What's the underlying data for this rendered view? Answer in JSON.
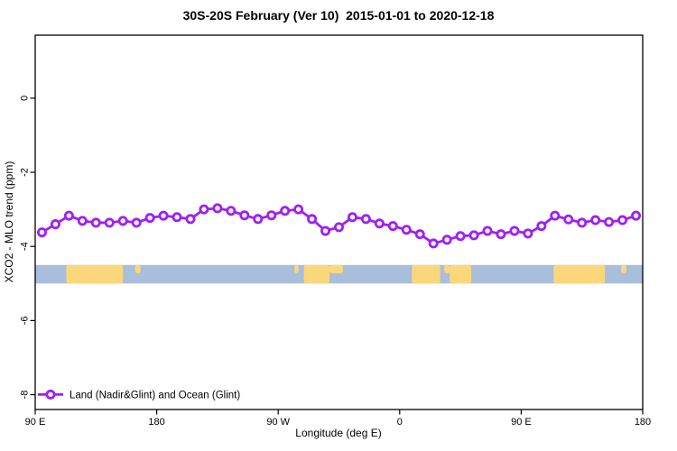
{
  "chart_data": {
    "type": "line",
    "title": "30S-20S February (Ver 10)  2015-01-01 to 2020-12-18",
    "xlabel": "Longitude (deg E)",
    "ylabel": "XCO2 - MLO trend (ppm)",
    "grid": false,
    "legend_position": "bottom-left-inside",
    "x_axis": {
      "min": 90,
      "max": 540,
      "ticks": [
        {
          "value": 90,
          "label": "90 E"
        },
        {
          "value": 180,
          "label": "180"
        },
        {
          "value": 270,
          "label": "90 W"
        },
        {
          "value": 360,
          "label": "0"
        },
        {
          "value": 450,
          "label": "90 E"
        },
        {
          "value": 540,
          "label": "180"
        }
      ]
    },
    "y_axis": {
      "min": -8.4,
      "max": 1.7,
      "ticks": [
        {
          "value": 0,
          "label": "0"
        },
        {
          "value": -2,
          "label": "-2"
        },
        {
          "value": -4,
          "label": "-4"
        },
        {
          "value": -6,
          "label": "-6"
        },
        {
          "value": -8,
          "label": "-8"
        }
      ]
    },
    "series": [
      {
        "name": "Land (Nadir&Glint) and Ocean (Glint)",
        "color": "#A020F0",
        "marker": "open-circle",
        "x": [
          95,
          105,
          115,
          125,
          135,
          145,
          155,
          165,
          175,
          185,
          195,
          205,
          215,
          225,
          235,
          245,
          255,
          265,
          275,
          285,
          295,
          305,
          315,
          325,
          335,
          345,
          355,
          365,
          375,
          385,
          395,
          405,
          415,
          425,
          435,
          445,
          455,
          465,
          475,
          485,
          495,
          505,
          515,
          525,
          535
        ],
        "y": [
          -3.62,
          -3.4,
          -3.17,
          -3.31,
          -3.36,
          -3.36,
          -3.31,
          -3.36,
          -3.23,
          -3.17,
          -3.21,
          -3.26,
          -3.0,
          -2.97,
          -3.04,
          -3.16,
          -3.26,
          -3.16,
          -3.04,
          -3.0,
          -3.26,
          -3.58,
          -3.48,
          -3.21,
          -3.26,
          -3.38,
          -3.45,
          -3.55,
          -3.67,
          -3.92,
          -3.82,
          -3.72,
          -3.7,
          -3.58,
          -3.67,
          -3.58,
          -3.65,
          -3.45,
          -3.17,
          -3.27,
          -3.36,
          -3.29,
          -3.34,
          -3.29,
          -3.17
        ]
      }
    ],
    "map_band": {
      "y_from": -4.5,
      "y_to": -5.0,
      "ocean_color": "#A8BEDB",
      "land_color": "#FBD77B",
      "land_segments": [
        {
          "from": 113,
          "to": 155,
          "part": "full"
        },
        {
          "from": 164,
          "to": 168,
          "part": "top"
        },
        {
          "from": 282,
          "to": 285,
          "part": "top"
        },
        {
          "from": 289,
          "to": 308,
          "part": "full"
        },
        {
          "from": 308,
          "to": 318,
          "part": "top"
        },
        {
          "from": 369,
          "to": 390,
          "part": "full"
        },
        {
          "from": 393,
          "to": 397,
          "part": "top"
        },
        {
          "from": 397,
          "to": 413,
          "part": "full"
        },
        {
          "from": 474,
          "to": 512,
          "part": "full"
        },
        {
          "from": 524,
          "to": 528,
          "part": "top"
        }
      ]
    },
    "legend": {
      "label": "Land (Nadir&Glint) and Ocean (Glint)"
    }
  },
  "colors": {
    "series_line": "#A020F0",
    "ocean": "#A8BEDB",
    "land": "#FBD77B",
    "axis": "#000000",
    "background": "#FFFFFF"
  }
}
